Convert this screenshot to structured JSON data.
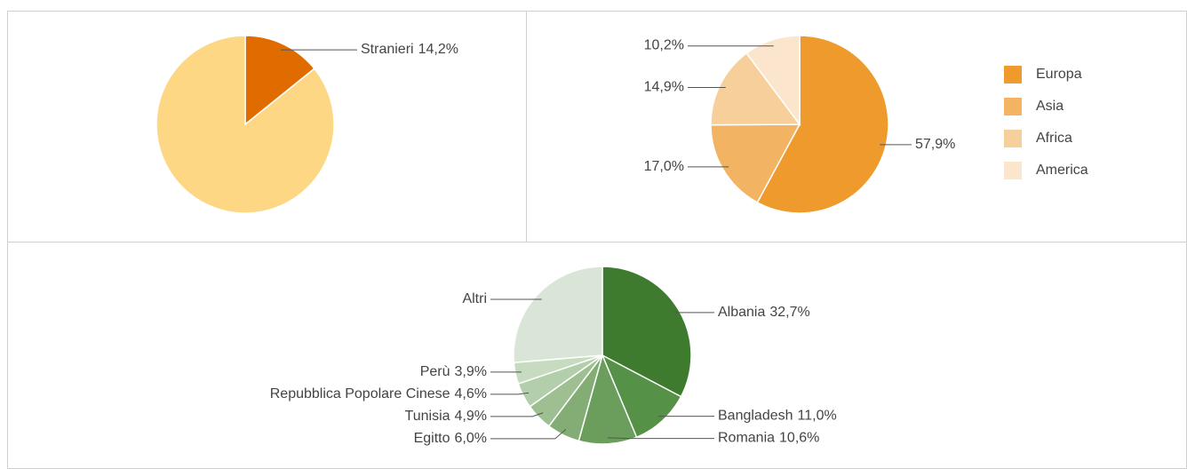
{
  "chart_data": [
    {
      "type": "pie",
      "categories": [
        "Stranieri",
        null
      ],
      "values": [
        14.2,
        85.8
      ],
      "value_labels": [
        "14,2%",
        null
      ],
      "colors": [
        "#e06c00",
        "#fdd783"
      ]
    },
    {
      "type": "pie",
      "categories": [
        "Europa",
        "Asia",
        "Africa",
        "America"
      ],
      "values": [
        57.9,
        17.0,
        14.9,
        10.2
      ],
      "value_labels": [
        "57,9%",
        "17,0%",
        "14,9%",
        "10,2%"
      ],
      "colors": [
        "#ef9a2c",
        "#f2b462",
        "#f7cf9a",
        "#fbe5cc"
      ],
      "legend": "right"
    },
    {
      "type": "pie",
      "categories": [
        "Albania",
        "Bangladesh",
        "Romania",
        "Egitto",
        "Tunisia",
        "Repubblica Popolare Cinese",
        "Perù",
        "Altri"
      ],
      "values": [
        32.7,
        11.0,
        10.6,
        6.0,
        4.9,
        4.6,
        3.9,
        26.3
      ],
      "value_labels": [
        "32,7%",
        "11,0%",
        "10,6%",
        "6,0%",
        "4,9%",
        "4,6%",
        "3,9%",
        null
      ],
      "colors": [
        "#3e7b2f",
        "#559147",
        "#6b9d5c",
        "#84ad76",
        "#9dbf91",
        "#b3ceaa",
        "#c6dbc0",
        "#d9e5d6"
      ]
    }
  ]
}
